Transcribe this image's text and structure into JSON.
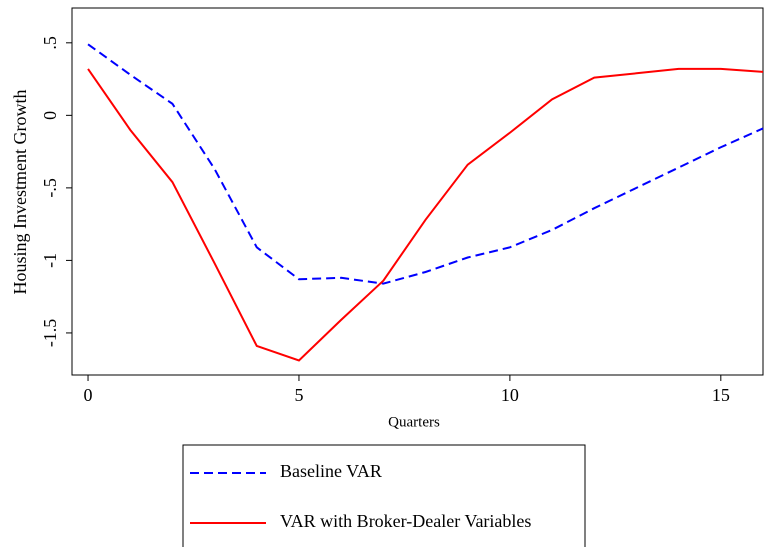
{
  "chart_data": {
    "type": "line",
    "x": [
      0,
      1,
      2,
      3,
      4,
      5,
      6,
      7,
      8,
      9,
      10,
      11,
      12,
      13,
      14,
      15,
      16
    ],
    "series": [
      {
        "name": "Baseline VAR",
        "color": "#0000ff",
        "dash": true,
        "values": [
          0.49,
          0.28,
          0.08,
          -0.37,
          -0.91,
          -1.13,
          -1.12,
          -1.16,
          -1.08,
          -0.98,
          -0.91,
          -0.79,
          -0.64,
          -0.5,
          -0.36,
          -0.22,
          -0.09
        ]
      },
      {
        "name": "VAR with Broker-Dealer Variables",
        "color": "#ff0000",
        "dash": false,
        "values": [
          0.32,
          -0.1,
          -0.46,
          -1.02,
          -1.59,
          -1.69,
          -1.41,
          -1.14,
          -0.72,
          -0.34,
          -0.12,
          0.11,
          0.26,
          0.29,
          0.32,
          0.32,
          0.3
        ]
      }
    ],
    "xlabel": "Quarters",
    "ylabel": "Housing Investment Growth",
    "xlim": [
      -0.38,
      16
    ],
    "ylim": [
      -1.79,
      0.74
    ],
    "xticks": [
      0,
      5,
      10,
      15
    ],
    "yticks": [
      {
        "value": 0.5,
        "label": ".5"
      },
      0,
      {
        "value": -0.5,
        "label": "-.5"
      },
      -1,
      -1.5
    ],
    "legend": "bottom"
  }
}
